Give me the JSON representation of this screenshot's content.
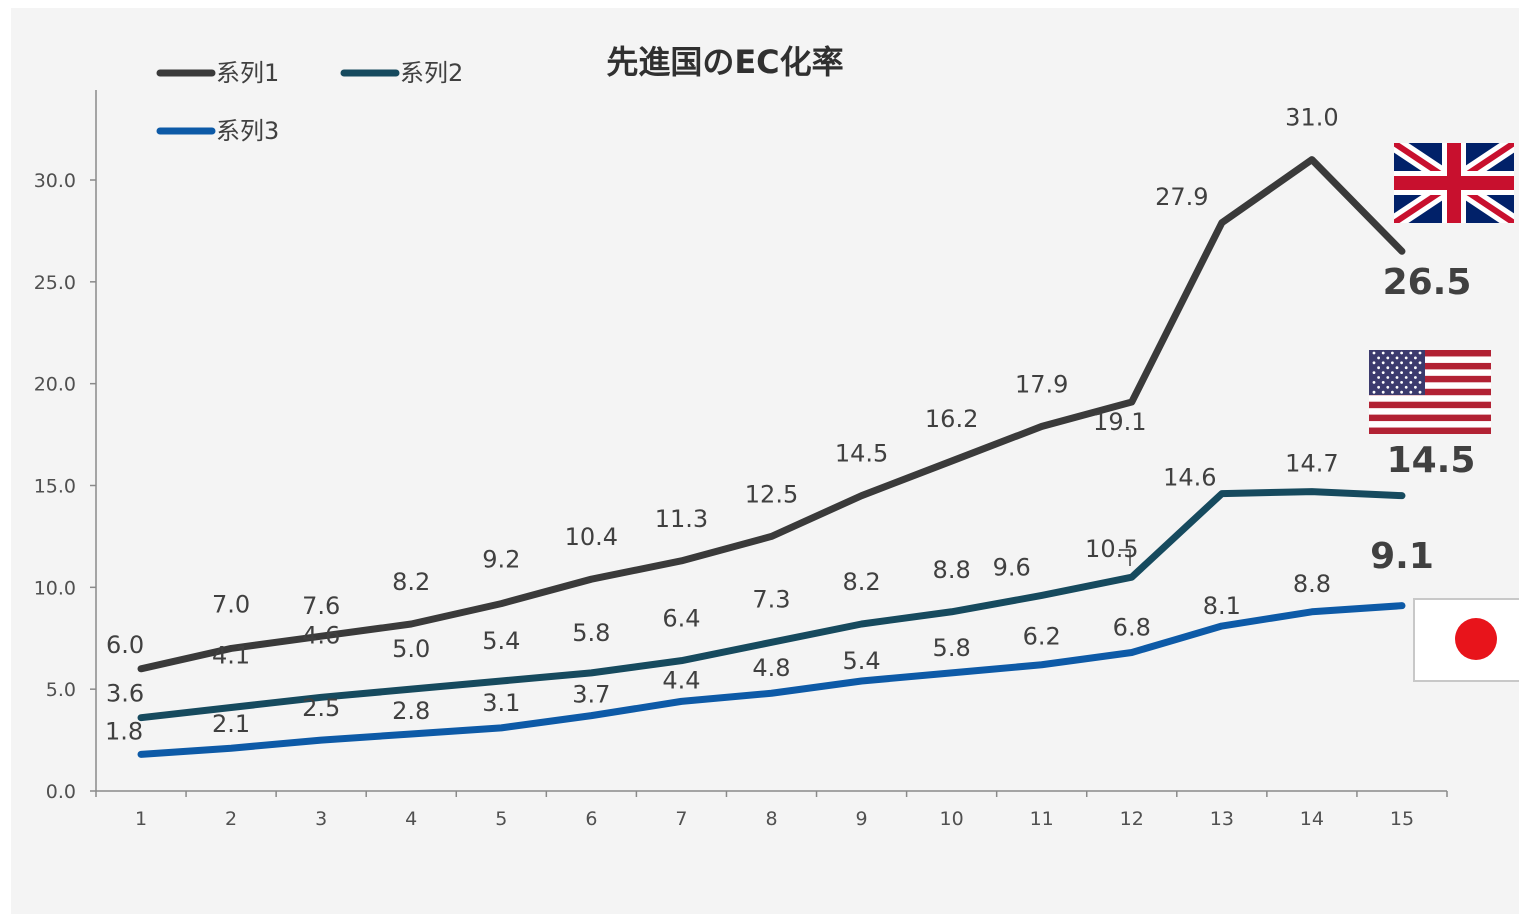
{
  "chart_data": {
    "type": "line",
    "title": "先進国のEC化率",
    "xlabel": "",
    "ylabel": "",
    "categories": [
      "1",
      "2",
      "3",
      "4",
      "5",
      "6",
      "7",
      "8",
      "9",
      "10",
      "11",
      "12",
      "13",
      "14",
      "15"
    ],
    "ylim": [
      0,
      30
    ],
    "y_ticks": [
      "0.0",
      "5.0",
      "10.0",
      "15.0",
      "20.0",
      "25.0",
      "30.0"
    ],
    "grid": false,
    "legend_position": "top-left",
    "series": [
      {
        "name": "系列1",
        "color": "#3a3a3a",
        "values": [
          6.0,
          7.0,
          7.6,
          8.2,
          9.2,
          10.4,
          11.3,
          12.5,
          14.5,
          16.2,
          17.9,
          19.1,
          27.9,
          31.0,
          26.5
        ],
        "labels": [
          "6.0",
          "7.0",
          "7.6",
          "8.2",
          "9.2",
          "10.4",
          "11.3",
          "12.5",
          "14.5",
          "16.2",
          "17.9",
          "19.1",
          "27.9",
          "31.0",
          ""
        ]
      },
      {
        "name": "系列2",
        "color": "#164a5e",
        "values": [
          3.6,
          4.1,
          4.6,
          5.0,
          5.4,
          5.8,
          6.4,
          7.3,
          8.2,
          8.8,
          9.6,
          10.5,
          14.6,
          14.7,
          14.5
        ],
        "labels": [
          "3.6",
          "4.1",
          "4.6",
          "5.0",
          "5.4",
          "5.8",
          "6.4",
          "7.3",
          "8.2",
          "8.8",
          "9.6",
          "10.5",
          "14.6",
          "14.7",
          ""
        ]
      },
      {
        "name": "系列3",
        "color": "#0d5aa7",
        "values": [
          1.8,
          2.1,
          2.5,
          2.8,
          3.1,
          3.7,
          4.4,
          4.8,
          5.4,
          5.8,
          6.2,
          6.8,
          8.1,
          8.8,
          9.1
        ],
        "labels": [
          "1.8",
          "2.1",
          "2.5",
          "2.8",
          "3.1",
          "3.7",
          "4.4",
          "4.8",
          "5.4",
          "5.8",
          "6.2",
          "6.8",
          "8.1",
          "8.8",
          ""
        ]
      }
    ],
    "end_labels": [
      "26.5",
      "14.5",
      "9.1"
    ],
    "flag_icons": [
      "uk-flag-icon",
      "us-flag-icon",
      "japan-flag-icon"
    ]
  }
}
